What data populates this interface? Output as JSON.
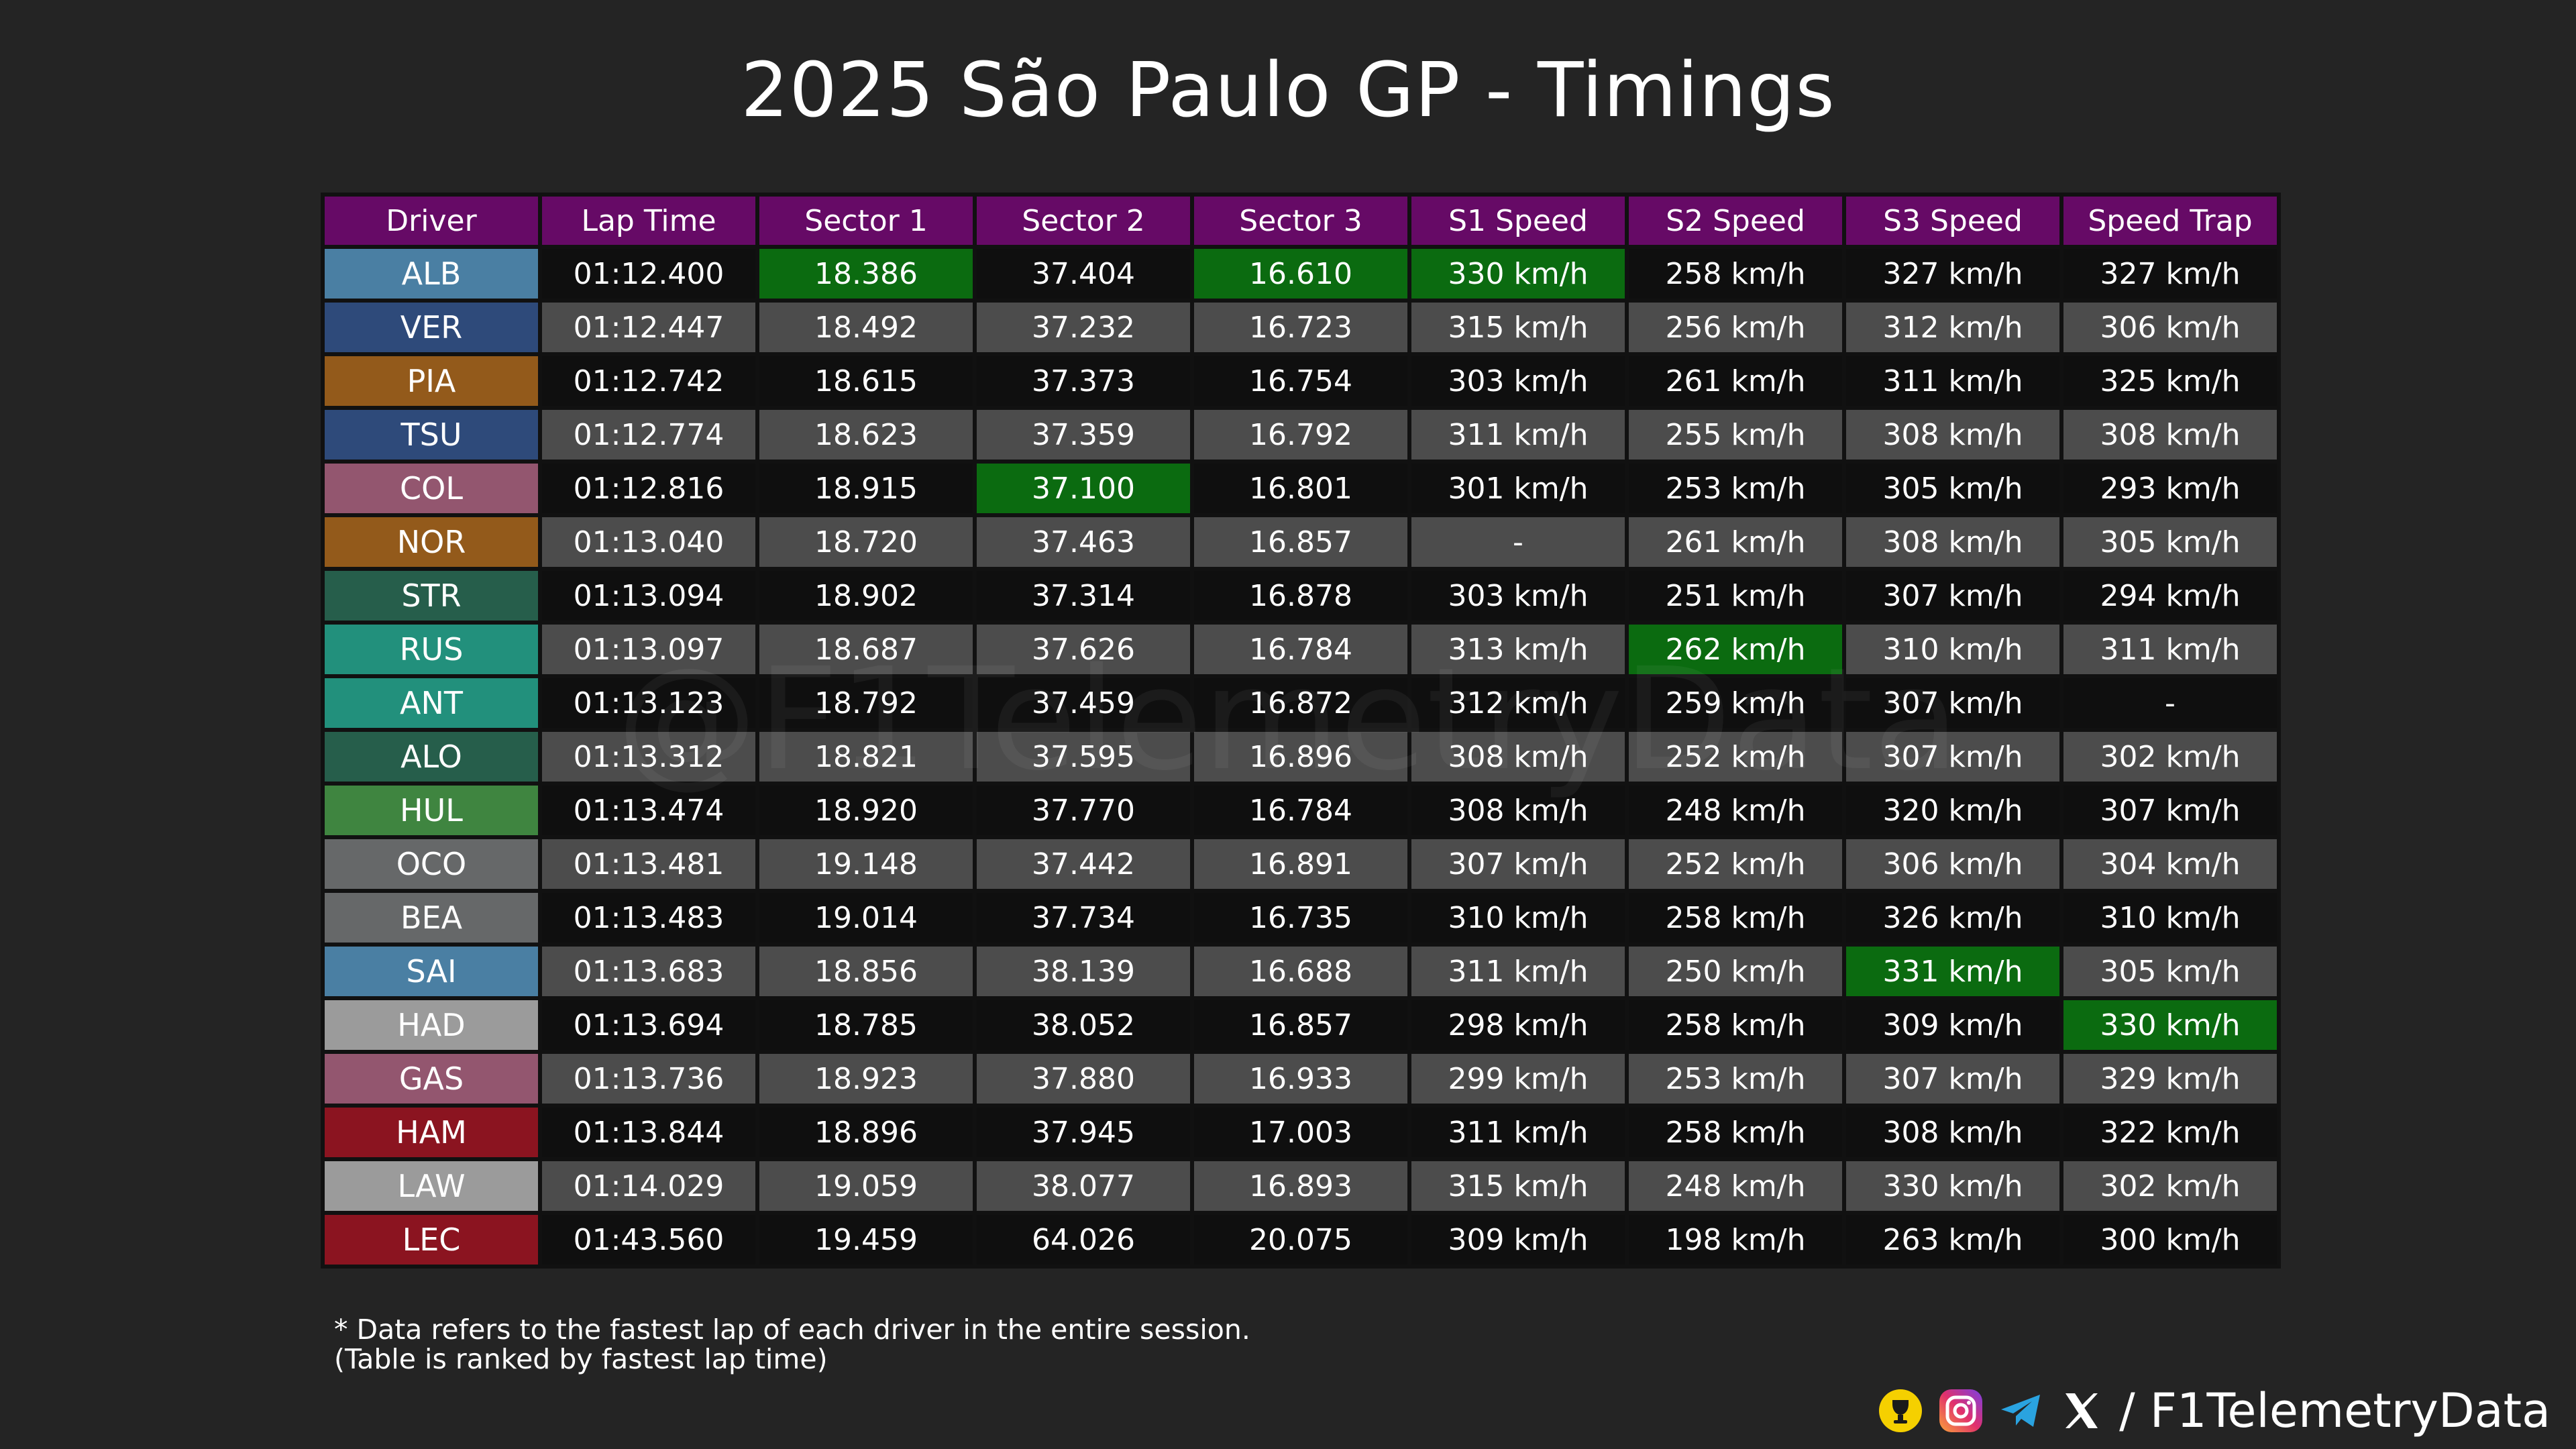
{
  "chart_data": {
    "type": "table",
    "title": "2025 São Paulo GP - Timings",
    "columns": [
      "Driver",
      "Lap Time",
      "Sector 1",
      "Sector 2",
      "Sector 3",
      "S1 Speed",
      "S2 Speed",
      "S3 Speed",
      "Speed Trap"
    ],
    "rows": [
      {
        "driver": "ALB",
        "team_color": "#4a7fa3",
        "values": [
          "01:12.400",
          "18.386",
          "37.404",
          "16.610",
          "330 km/h",
          "258 km/h",
          "327 km/h",
          "327 km/h"
        ],
        "best": [
          false,
          true,
          false,
          true,
          true,
          false,
          false,
          false
        ]
      },
      {
        "driver": "VER",
        "team_color": "#2e4a7a",
        "values": [
          "01:12.447",
          "18.492",
          "37.232",
          "16.723",
          "315 km/h",
          "256 km/h",
          "312 km/h",
          "306 km/h"
        ],
        "best": [
          false,
          false,
          false,
          false,
          false,
          false,
          false,
          false
        ]
      },
      {
        "driver": "PIA",
        "team_color": "#935a1b",
        "values": [
          "01:12.742",
          "18.615",
          "37.373",
          "16.754",
          "303 km/h",
          "261 km/h",
          "311 km/h",
          "325 km/h"
        ],
        "best": [
          false,
          false,
          false,
          false,
          false,
          false,
          false,
          false
        ]
      },
      {
        "driver": "TSU",
        "team_color": "#2e4a7a",
        "values": [
          "01:12.774",
          "18.623",
          "37.359",
          "16.792",
          "311 km/h",
          "255 km/h",
          "308 km/h",
          "308 km/h"
        ],
        "best": [
          false,
          false,
          false,
          false,
          false,
          false,
          false,
          false
        ]
      },
      {
        "driver": "COL",
        "team_color": "#93566f",
        "values": [
          "01:12.816",
          "18.915",
          "37.100",
          "16.801",
          "301 km/h",
          "253 km/h",
          "305 km/h",
          "293 km/h"
        ],
        "best": [
          false,
          false,
          true,
          false,
          false,
          false,
          false,
          false
        ]
      },
      {
        "driver": "NOR",
        "team_color": "#935a1b",
        "values": [
          "01:13.040",
          "18.720",
          "37.463",
          "16.857",
          "-",
          "261 km/h",
          "308 km/h",
          "305 km/h"
        ],
        "best": [
          false,
          false,
          false,
          false,
          false,
          false,
          false,
          false
        ]
      },
      {
        "driver": "STR",
        "team_color": "#265e4b",
        "values": [
          "01:13.094",
          "18.902",
          "37.314",
          "16.878",
          "303 km/h",
          "251 km/h",
          "307 km/h",
          "294 km/h"
        ],
        "best": [
          false,
          false,
          false,
          false,
          false,
          false,
          false,
          false
        ]
      },
      {
        "driver": "RUS",
        "team_color": "#22907c",
        "values": [
          "01:13.097",
          "18.687",
          "37.626",
          "16.784",
          "313 km/h",
          "262 km/h",
          "310 km/h",
          "311 km/h"
        ],
        "best": [
          false,
          false,
          false,
          false,
          false,
          true,
          false,
          false
        ]
      },
      {
        "driver": "ANT",
        "team_color": "#22907c",
        "values": [
          "01:13.123",
          "18.792",
          "37.459",
          "16.872",
          "312 km/h",
          "259 km/h",
          "307 km/h",
          "-"
        ],
        "best": [
          false,
          false,
          false,
          false,
          false,
          false,
          false,
          false
        ]
      },
      {
        "driver": "ALO",
        "team_color": "#265e4b",
        "values": [
          "01:13.312",
          "18.821",
          "37.595",
          "16.896",
          "308 km/h",
          "252 km/h",
          "307 km/h",
          "302 km/h"
        ],
        "best": [
          false,
          false,
          false,
          false,
          false,
          false,
          false,
          false
        ]
      },
      {
        "driver": "HUL",
        "team_color": "#3f8540",
        "values": [
          "01:13.474",
          "18.920",
          "37.770",
          "16.784",
          "308 km/h",
          "248 km/h",
          "320 km/h",
          "307 km/h"
        ],
        "best": [
          false,
          false,
          false,
          false,
          false,
          false,
          false,
          false
        ]
      },
      {
        "driver": "OCO",
        "team_color": "#666869",
        "values": [
          "01:13.481",
          "19.148",
          "37.442",
          "16.891",
          "307 km/h",
          "252 km/h",
          "306 km/h",
          "304 km/h"
        ],
        "best": [
          false,
          false,
          false,
          false,
          false,
          false,
          false,
          false
        ]
      },
      {
        "driver": "BEA",
        "team_color": "#666869",
        "values": [
          "01:13.483",
          "19.014",
          "37.734",
          "16.735",
          "310 km/h",
          "258 km/h",
          "326 km/h",
          "310 km/h"
        ],
        "best": [
          false,
          false,
          false,
          false,
          false,
          false,
          false,
          false
        ]
      },
      {
        "driver": "SAI",
        "team_color": "#4a7fa3",
        "values": [
          "01:13.683",
          "18.856",
          "38.139",
          "16.688",
          "311 km/h",
          "250 km/h",
          "331 km/h",
          "305 km/h"
        ],
        "best": [
          false,
          false,
          false,
          false,
          false,
          false,
          true,
          false
        ]
      },
      {
        "driver": "HAD",
        "team_color": "#9b9b9b",
        "values": [
          "01:13.694",
          "18.785",
          "38.052",
          "16.857",
          "298 km/h",
          "258 km/h",
          "309 km/h",
          "330 km/h"
        ],
        "best": [
          false,
          false,
          false,
          false,
          false,
          false,
          false,
          true
        ]
      },
      {
        "driver": "GAS",
        "team_color": "#93566f",
        "values": [
          "01:13.736",
          "18.923",
          "37.880",
          "16.933",
          "299 km/h",
          "253 km/h",
          "307 km/h",
          "329 km/h"
        ],
        "best": [
          false,
          false,
          false,
          false,
          false,
          false,
          false,
          false
        ]
      },
      {
        "driver": "HAM",
        "team_color": "#8b1420",
        "values": [
          "01:13.844",
          "18.896",
          "37.945",
          "17.003",
          "311 km/h",
          "258 km/h",
          "308 km/h",
          "322 km/h"
        ],
        "best": [
          false,
          false,
          false,
          false,
          false,
          false,
          false,
          false
        ]
      },
      {
        "driver": "LAW",
        "team_color": "#9b9b9b",
        "values": [
          "01:14.029",
          "19.059",
          "38.077",
          "16.893",
          "315 km/h",
          "248 km/h",
          "330 km/h",
          "302 km/h"
        ],
        "best": [
          false,
          false,
          false,
          false,
          false,
          false,
          false,
          false
        ]
      },
      {
        "driver": "LEC",
        "team_color": "#8b1420",
        "values": [
          "01:43.560",
          "19.459",
          "64.026",
          "20.075",
          "309 km/h",
          "198 km/h",
          "263 km/h",
          "300 km/h"
        ],
        "best": [
          false,
          false,
          false,
          false,
          false,
          false,
          false,
          false
        ]
      }
    ],
    "best_color": "#0b6b10",
    "header_color": "#660a66"
  },
  "watermark": "@F1TelemetryData",
  "footnote": {
    "line1": "* Data refers to the fastest lap of each driver in the entire session.",
    "line2": "(Table is ranked by fastest lap time)"
  },
  "branding": {
    "icons": [
      "trophy-icon",
      "instagram-icon",
      "telegram-icon",
      "x-icon"
    ],
    "slash": "/",
    "handle": "F1TelemetryData"
  }
}
